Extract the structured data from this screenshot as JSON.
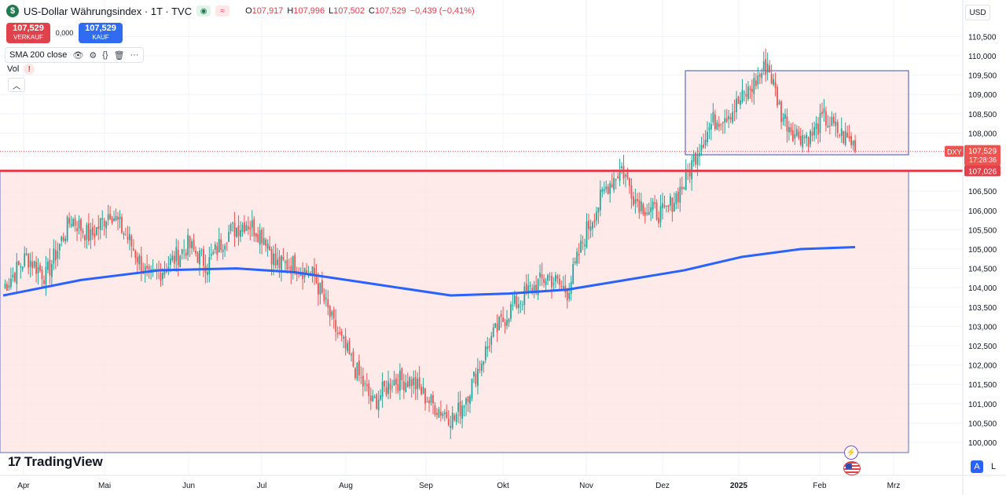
{
  "header": {
    "title": "US-Dollar Währungsindex · 1T · TVC",
    "logo_letter": "$",
    "ohlc": [
      {
        "k": "O",
        "v": "107,917"
      },
      {
        "k": "H",
        "v": "107,996"
      },
      {
        "k": "L",
        "v": "107,502"
      },
      {
        "k": "C",
        "v": "107,529"
      },
      {
        "k": "",
        "v": "−0,439 (−0,41%)"
      }
    ]
  },
  "trade": {
    "sell_price": "107,529",
    "sell_label": "VERKAUF",
    "spread": "0,000",
    "buy_price": "107,529",
    "buy_label": "KAUF"
  },
  "indicator": {
    "label": "SMA 200 close"
  },
  "volume": {
    "label": "Vol",
    "warning": "!"
  },
  "currency": "USD",
  "brand": "TradingView",
  "price_axis": {
    "ticks": [
      "110,500",
      "110,000",
      "109,500",
      "109,000",
      "108,500",
      "108,000",
      "107,500",
      "107,000",
      "106,500",
      "106,000",
      "105,500",
      "105,000",
      "104,500",
      "104,000",
      "103,500",
      "103,000",
      "102,500",
      "102,000",
      "101,500",
      "101,000",
      "100,500",
      "100,000"
    ],
    "current_symbol": "DXY",
    "current_price": "107,529",
    "countdown": "17:28:36",
    "level_price": "107,026"
  },
  "time_axis": [
    "Apr",
    "Mai",
    "Jun",
    "Jul",
    "Aug",
    "Sep",
    "Okt",
    "Nov",
    "Dez",
    "2025",
    "Feb",
    "Mrz"
  ],
  "bottom_right": {
    "auto": "A",
    "log": "L"
  },
  "colors": {
    "up": "#26a69a",
    "down": "#ef5350",
    "sma": "#2962ff",
    "level": "#e0414a",
    "zone": "#ffe3e3"
  },
  "chart_data": {
    "type": "candlestick",
    "series": [
      {
        "name": "SMA 200 close"
      }
    ],
    "ylim": [
      99.8,
      110.8
    ],
    "current": 107.529,
    "level": 107.026,
    "key_points": [
      [
        0,
        104.0
      ],
      [
        12,
        104.8
      ],
      [
        22,
        104.3
      ],
      [
        35,
        105.8
      ],
      [
        45,
        105.3
      ],
      [
        55,
        106.0
      ],
      [
        65,
        105.2
      ],
      [
        75,
        104.2
      ],
      [
        85,
        104.6
      ],
      [
        95,
        105.1
      ],
      [
        105,
        104.6
      ],
      [
        115,
        105.4
      ],
      [
        125,
        105.7
      ],
      [
        135,
        105.3
      ],
      [
        140,
        104.6
      ],
      [
        150,
        104.6
      ],
      [
        160,
        104.3
      ],
      [
        170,
        103.0
      ],
      [
        180,
        102.0
      ],
      [
        190,
        101.0
      ],
      [
        200,
        101.6
      ],
      [
        210,
        101.6
      ],
      [
        220,
        101.0
      ],
      [
        232,
        100.6
      ],
      [
        240,
        101.4
      ],
      [
        250,
        102.6
      ],
      [
        260,
        103.4
      ],
      [
        270,
        103.9
      ],
      [
        280,
        104.3
      ],
      [
        290,
        103.9
      ],
      [
        300,
        105.5
      ],
      [
        310,
        106.6
      ],
      [
        318,
        107.1
      ],
      [
        325,
        106.3
      ],
      [
        332,
        106.0
      ],
      [
        340,
        105.9
      ],
      [
        350,
        106.7
      ],
      [
        358,
        107.7
      ],
      [
        365,
        108.3
      ],
      [
        375,
        108.6
      ],
      [
        385,
        109.2
      ],
      [
        393,
        109.8
      ],
      [
        400,
        108.5
      ],
      [
        407,
        108.0
      ],
      [
        415,
        107.9
      ],
      [
        422,
        108.4
      ],
      [
        430,
        108.0
      ],
      [
        438,
        107.7
      ]
    ],
    "sma": [
      [
        0,
        103.8
      ],
      [
        40,
        104.2
      ],
      [
        80,
        104.45
      ],
      [
        120,
        104.5
      ],
      [
        150,
        104.4
      ],
      [
        190,
        104.1
      ],
      [
        230,
        103.8
      ],
      [
        260,
        103.85
      ],
      [
        290,
        103.95
      ],
      [
        320,
        104.2
      ],
      [
        350,
        104.45
      ],
      [
        380,
        104.8
      ],
      [
        410,
        105.0
      ],
      [
        438,
        105.05
      ]
    ]
  }
}
